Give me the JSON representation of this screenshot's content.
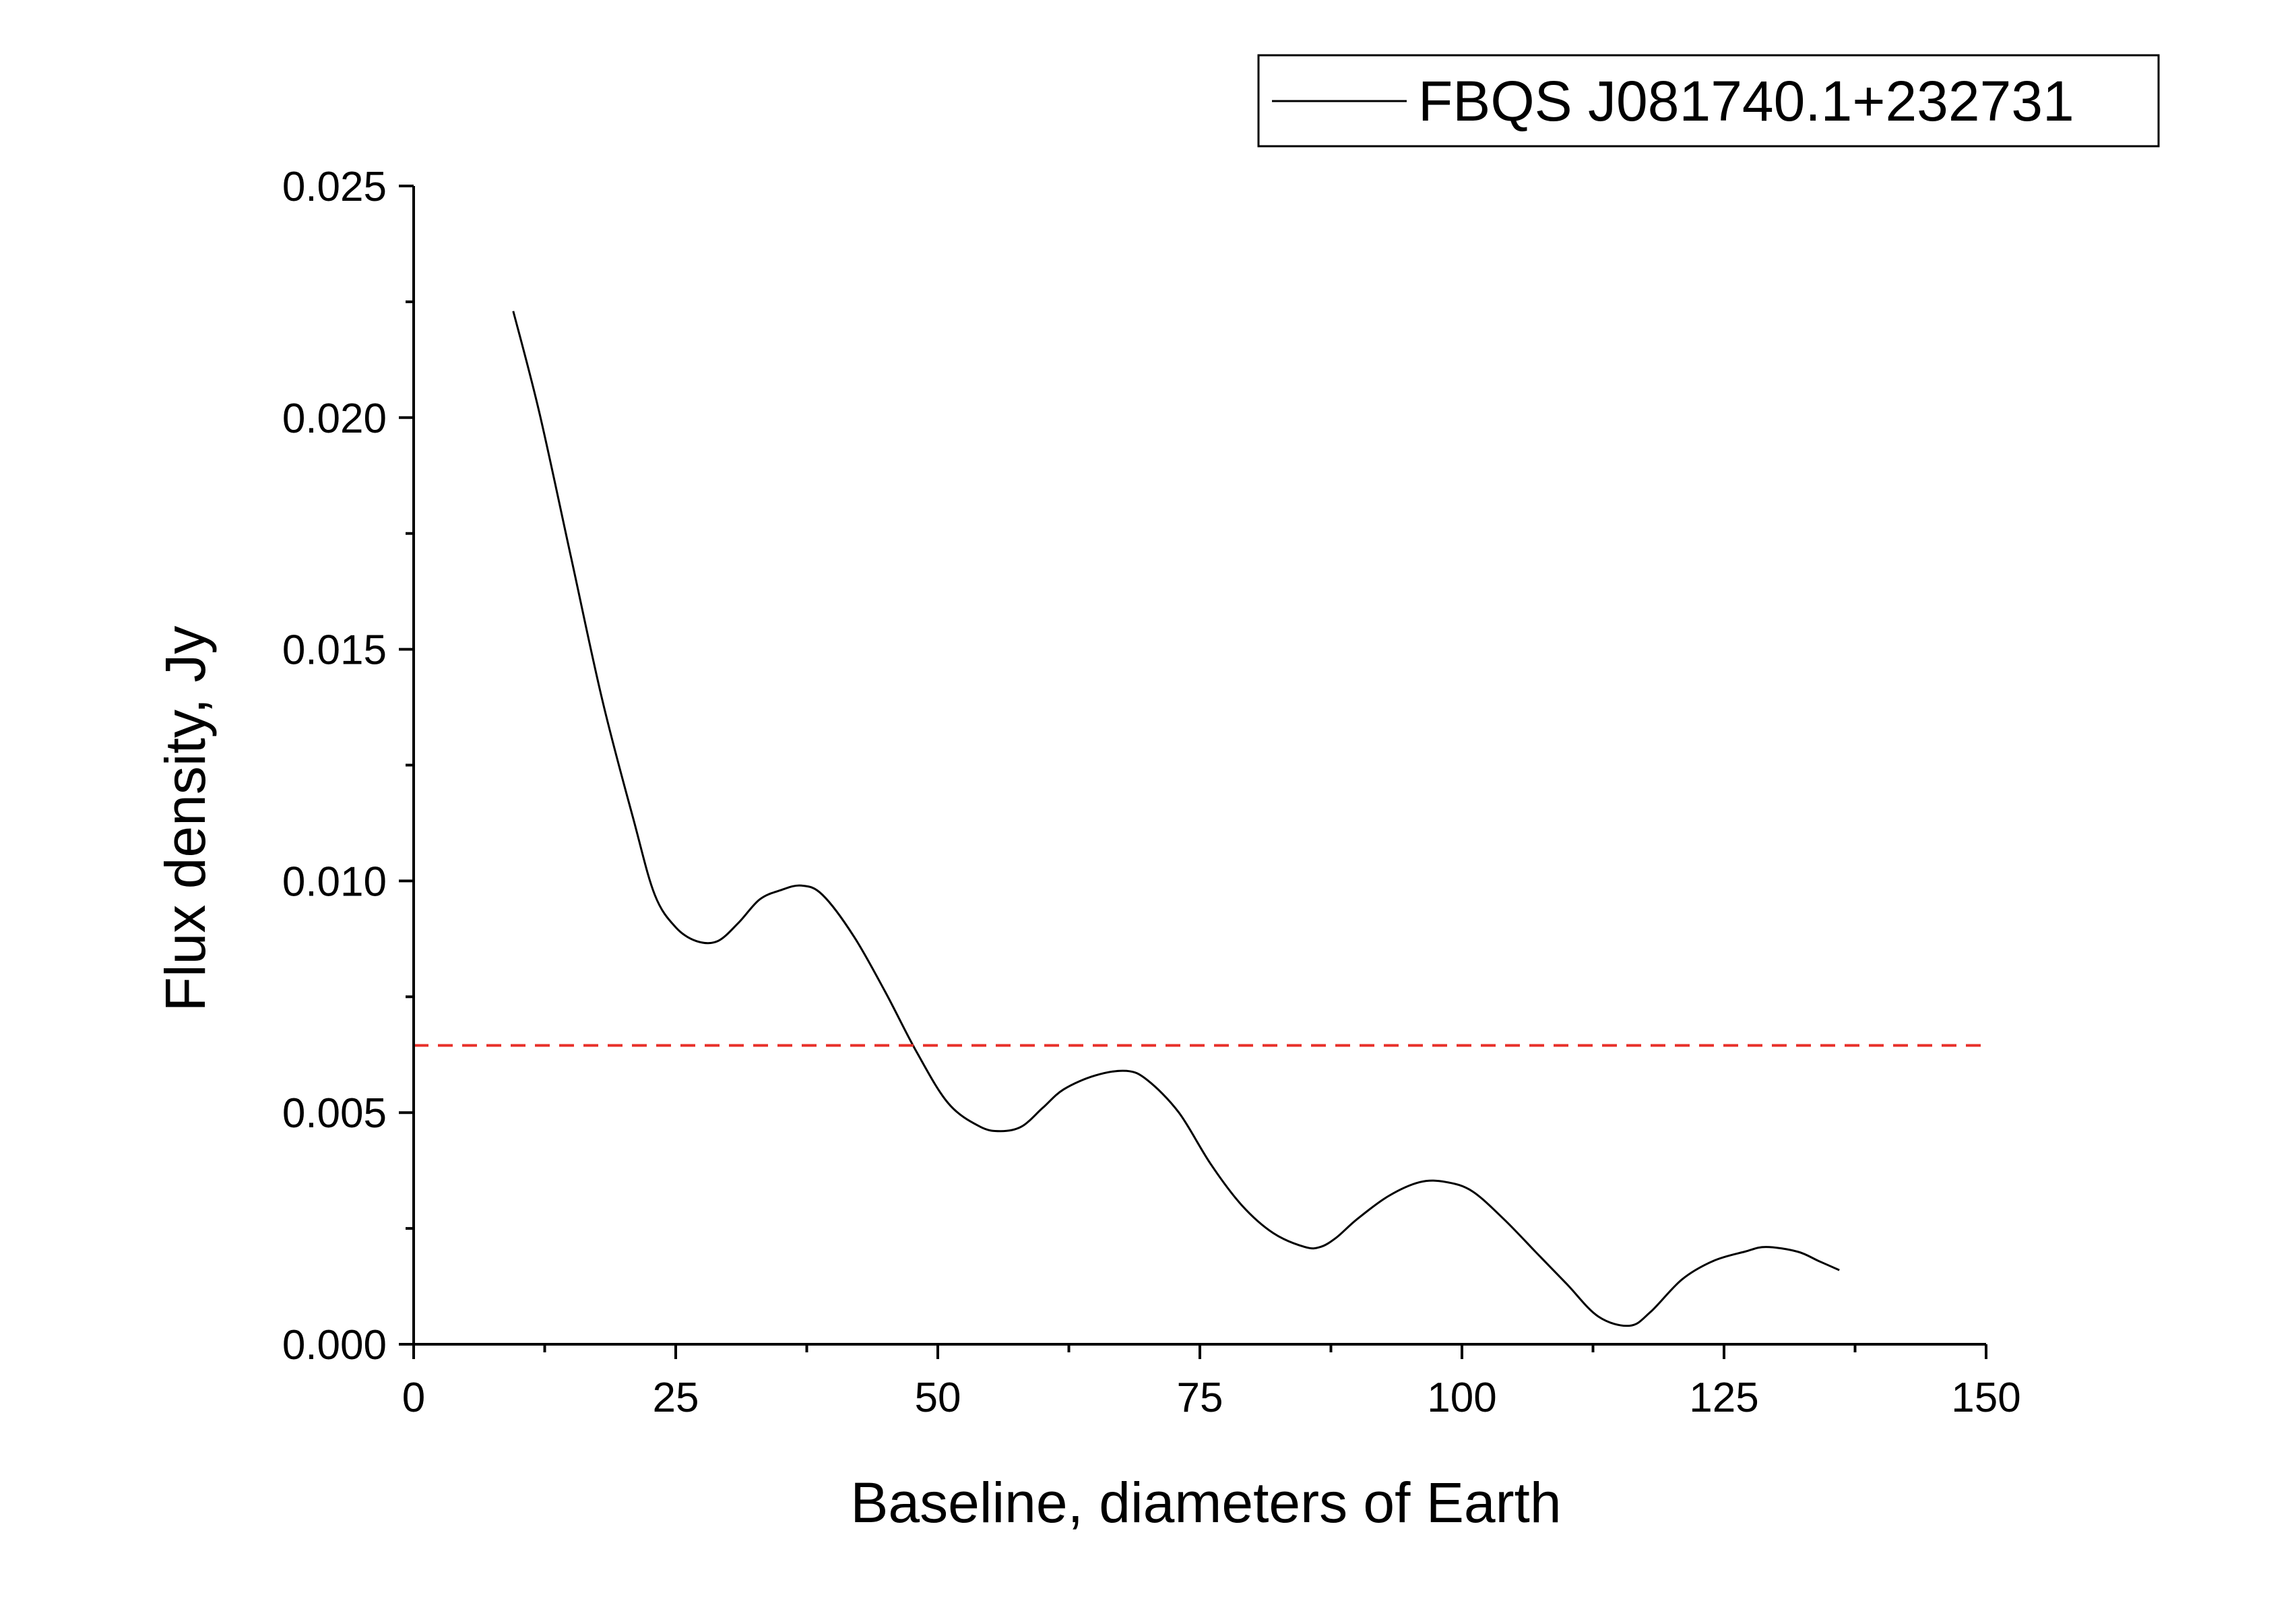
{
  "chart_data": {
    "type": "line",
    "xlabel": "Baseline, diameters of Earth",
    "ylabel": "Flux density, Jy",
    "xlim": [
      0,
      150
    ],
    "ylim": [
      0,
      0.025
    ],
    "x_ticks": [
      "0",
      "25",
      "50",
      "75",
      "100",
      "125",
      "150"
    ],
    "y_ticks": [
      "0.000",
      "0.005",
      "0.010",
      "0.015",
      "0.020",
      "0.025"
    ],
    "grid": false,
    "legend_position": "top-right",
    "series": [
      {
        "name": "FBQS J081740.1+232731",
        "color": "#000000",
        "style": "solid",
        "x": [
          9.5,
          12,
          15,
          18,
          21,
          23,
          25,
          27,
          29,
          31,
          33,
          35,
          37,
          39,
          42,
          45,
          48,
          51,
          54,
          56,
          58,
          60,
          62,
          65,
          68,
          70,
          73,
          76,
          79,
          82,
          85,
          86.5,
          88,
          90,
          93,
          96,
          98.5,
          101,
          104,
          107,
          110,
          113,
          116,
          118,
          121,
          124,
          127,
          129,
          132,
          134,
          136
        ],
        "y": [
          0.0223,
          0.0201,
          0.017,
          0.0139,
          0.0113,
          0.0097,
          0.009,
          0.0087,
          0.0087,
          0.0091,
          0.0096,
          0.0098,
          0.0099,
          0.0097,
          0.0088,
          0.0076,
          0.0063,
          0.0052,
          0.0047,
          0.0046,
          0.0047,
          0.0051,
          0.0055,
          0.0058,
          0.0059,
          0.0057,
          0.005,
          0.0039,
          0.003,
          0.0024,
          0.0021,
          0.0021,
          0.0023,
          0.0027,
          0.0032,
          0.0035,
          0.0035,
          0.0033,
          0.0027,
          0.002,
          0.0013,
          0.0006,
          0.0004,
          0.0007,
          0.0014,
          0.0018,
          0.002,
          0.0021,
          0.002,
          0.0018,
          0.0016
        ]
      },
      {
        "color": "#e8302a",
        "style": "dashed",
        "x": [
          0,
          150
        ],
        "y": [
          0.00645,
          0.00645
        ]
      }
    ]
  }
}
